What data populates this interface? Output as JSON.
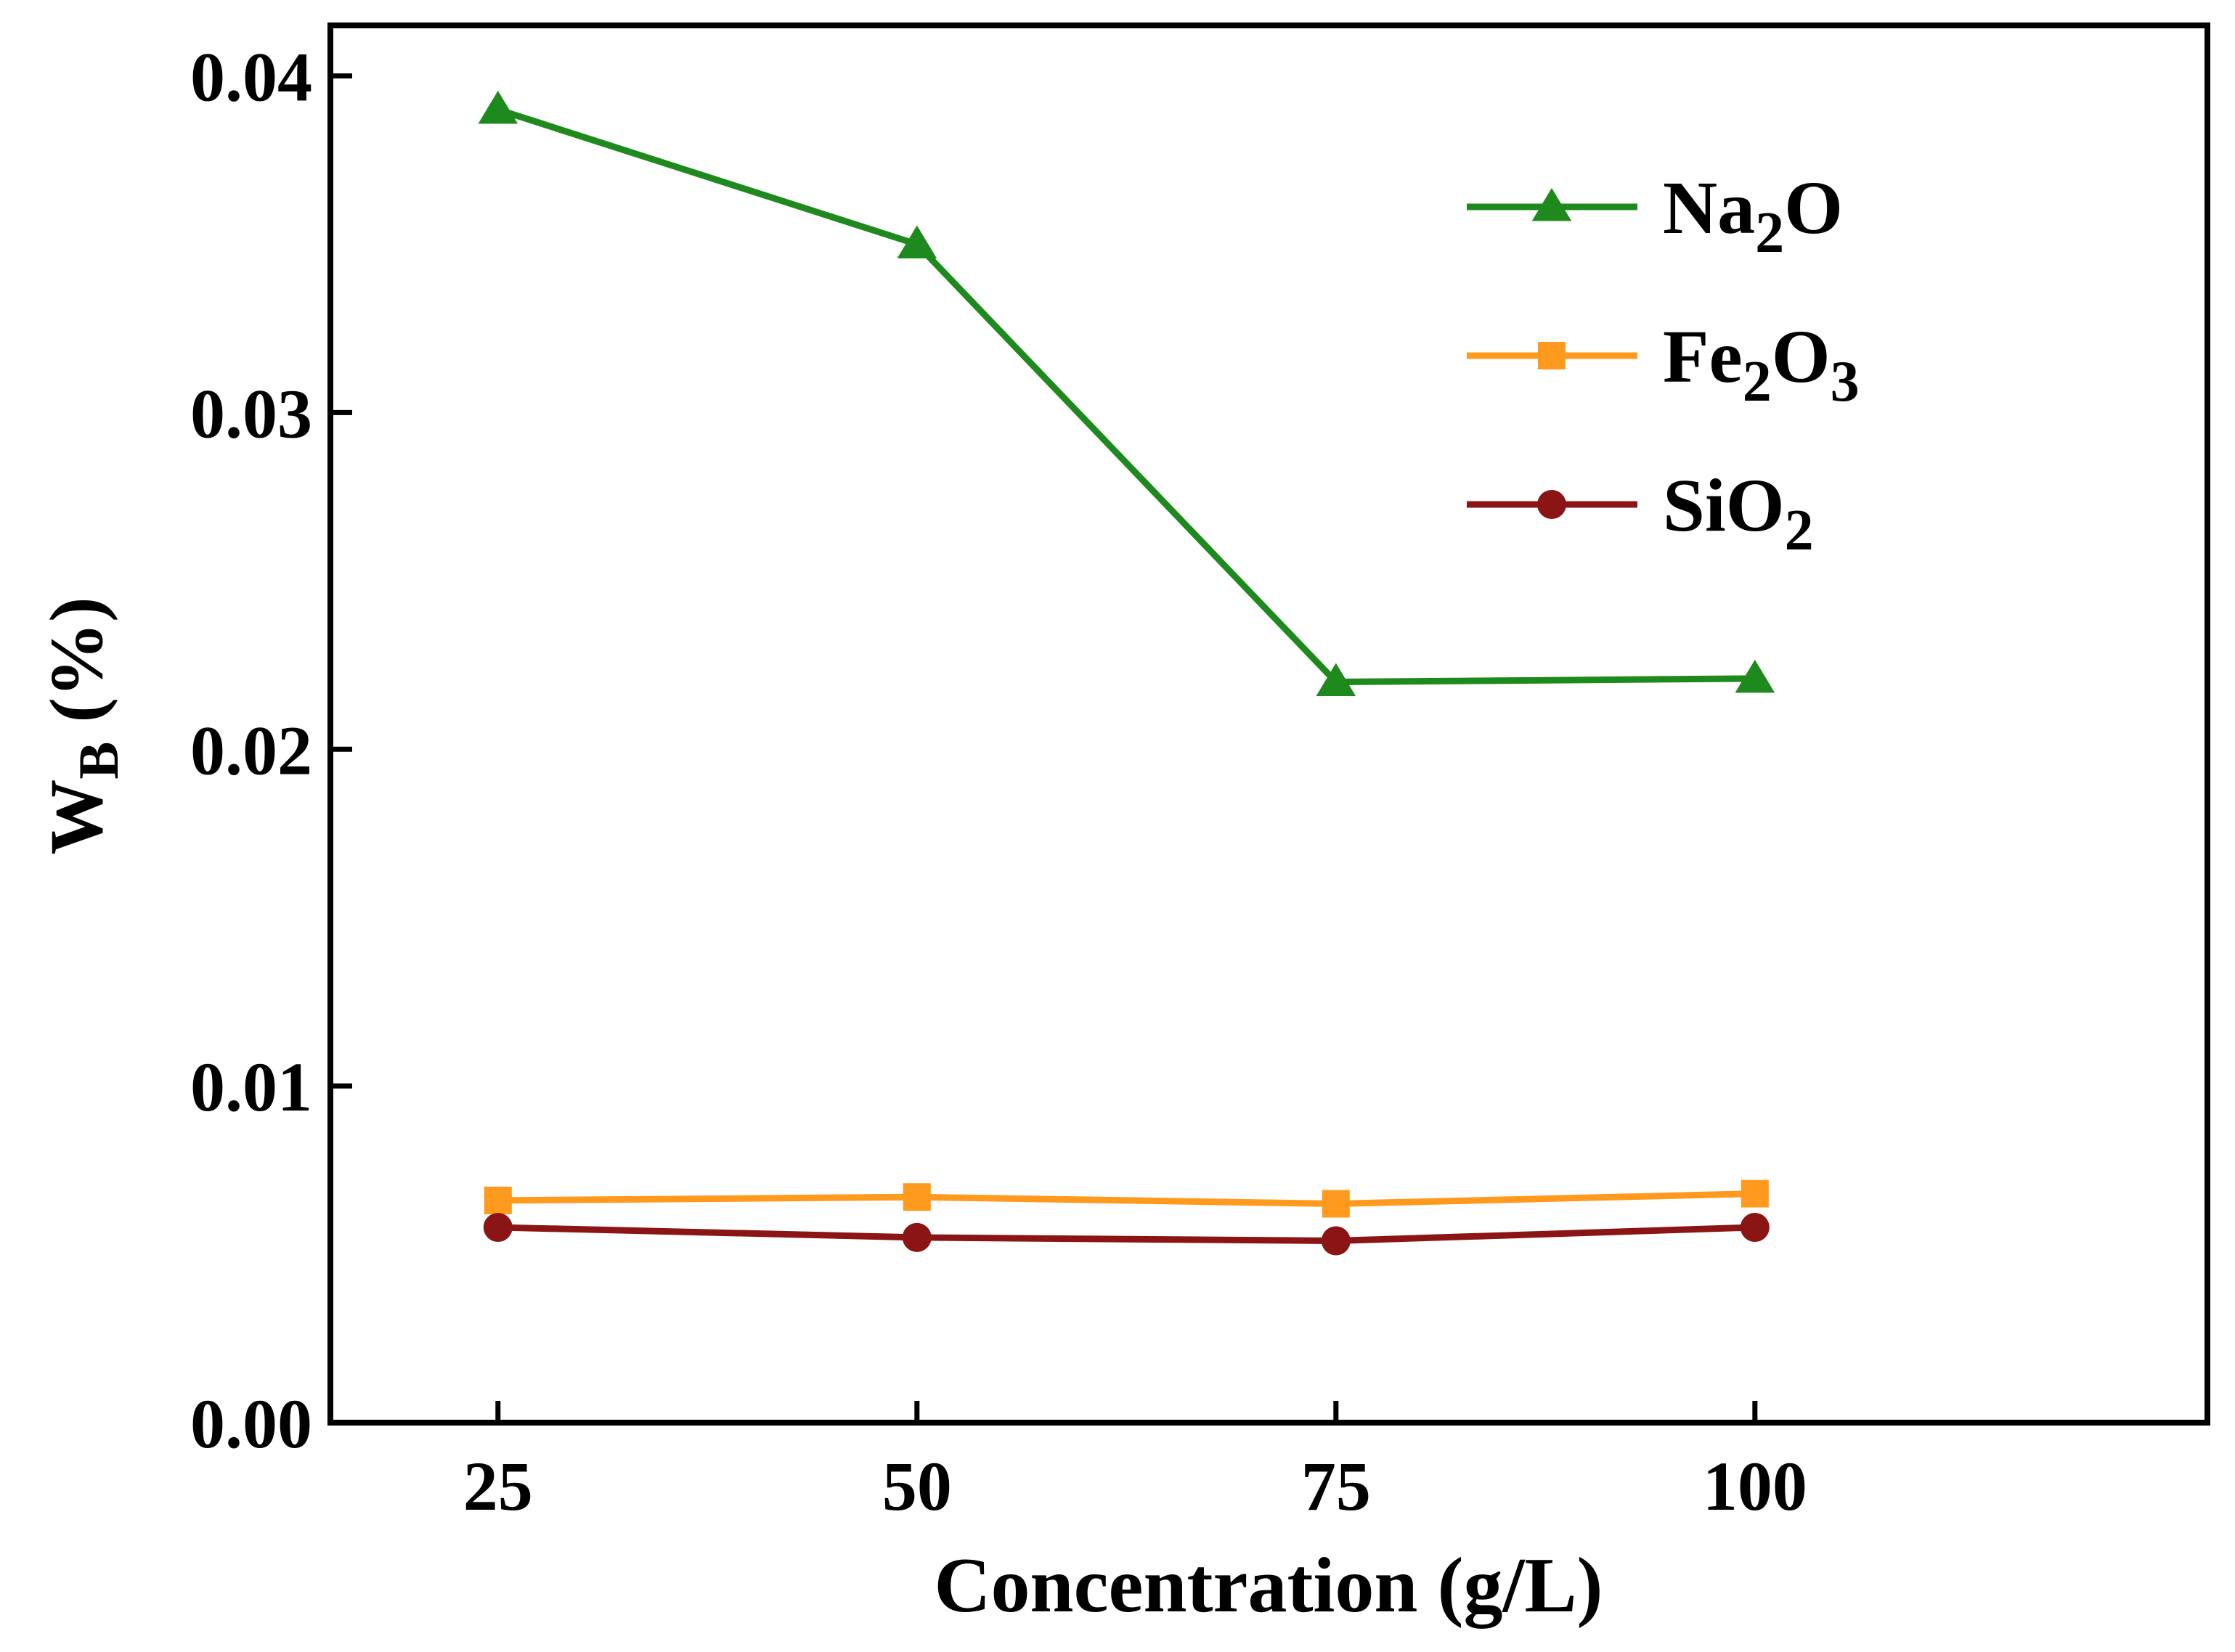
{
  "chart_data": {
    "type": "line",
    "title": "",
    "xlabel": "Concentration (g/L)",
    "ylabel": {
      "main": "W",
      "sub": "B",
      "unit": " (%)"
    },
    "x": [
      25,
      50,
      75,
      100
    ],
    "xlim": [
      15,
      127
    ],
    "ylim": [
      0,
      0.0415
    ],
    "xticks": [
      25,
      50,
      75,
      100
    ],
    "xtick_labels": [
      "25",
      "50",
      "75",
      "100"
    ],
    "yticks": [
      0,
      0.01,
      0.02,
      0.03,
      0.04
    ],
    "ytick_labels": [
      "0.00",
      "0.01",
      "0.02",
      "0.03",
      "0.04"
    ],
    "grid": false,
    "legend_position": "top-right",
    "series": [
      {
        "name": "Na2O",
        "label_main": "Na",
        "label_sub1": "2",
        "label_mid": "O",
        "label_sub2": "",
        "marker": "triangle",
        "color": "#1e8a1e",
        "values": [
          0.039,
          0.035,
          0.022,
          0.0221
        ]
      },
      {
        "name": "Fe2O3",
        "label_main": "Fe",
        "label_sub1": "2",
        "label_mid": "O",
        "label_sub2": "3",
        "marker": "square",
        "color": "#ff9a1f",
        "values": [
          0.0066,
          0.0067,
          0.0065,
          0.0068
        ]
      },
      {
        "name": "SiO2",
        "label_main": "SiO",
        "label_sub1": "2",
        "label_mid": "",
        "label_sub2": "",
        "marker": "circle",
        "color": "#8b1414",
        "values": [
          0.0058,
          0.0055,
          0.0054,
          0.0058
        ]
      }
    ]
  }
}
